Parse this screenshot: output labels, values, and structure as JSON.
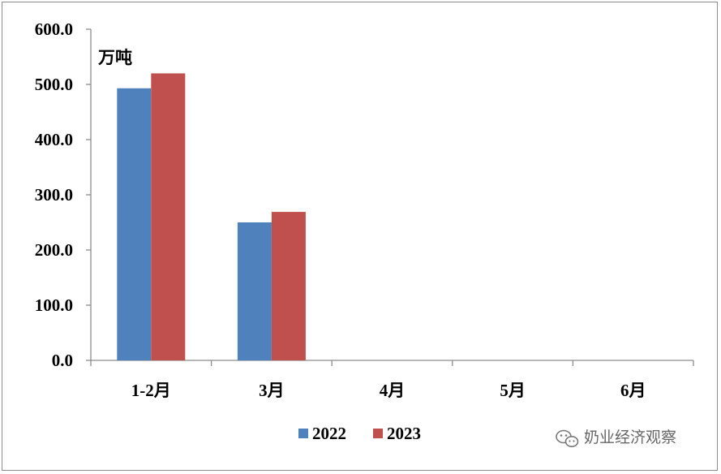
{
  "chart_data": {
    "type": "bar",
    "title": "",
    "xlabel": "",
    "ylabel": "",
    "unit_label": "万吨",
    "categories": [
      "1-2月",
      "3月",
      "4月",
      "5月",
      "6月"
    ],
    "series": [
      {
        "name": "2022",
        "color": "#4f81bd",
        "values": [
          493,
          250,
          null,
          null,
          null
        ]
      },
      {
        "name": "2023",
        "color": "#c0504d",
        "values": [
          520,
          269,
          null,
          null,
          null
        ]
      }
    ],
    "ylim": [
      0,
      600
    ],
    "yticks": [
      0,
      100,
      200,
      300,
      400,
      500,
      600
    ],
    "ytick_labels": [
      "0.0",
      "100.0",
      "200.0",
      "300.0",
      "400.0",
      "500.0",
      "600.0"
    ],
    "grid": false,
    "legend_position": "bottom-center"
  },
  "watermark": {
    "icon": "wechat-icon",
    "text": "奶业经济观察"
  }
}
